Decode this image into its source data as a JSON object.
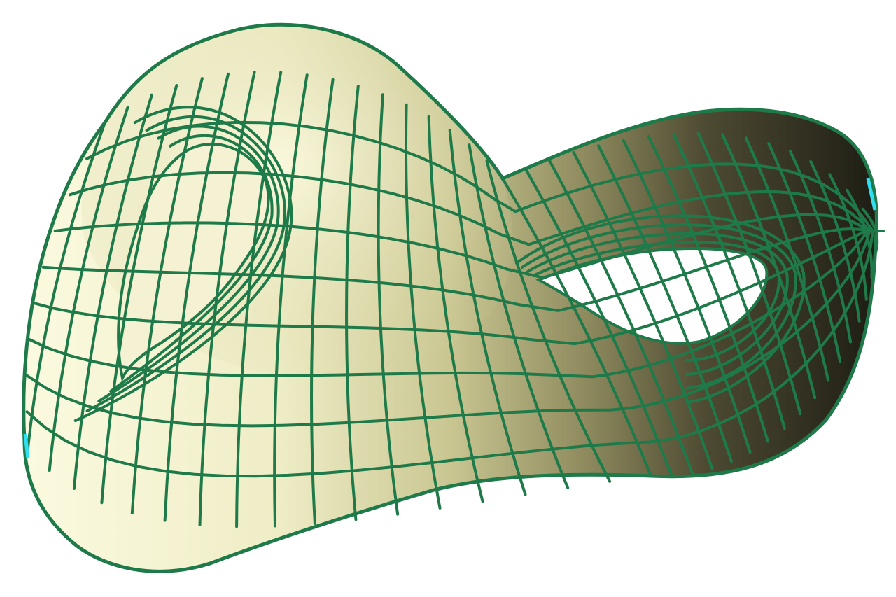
{
  "figure": {
    "subject": "klein-bottle-wireframe",
    "colors": {
      "background": "#ffffff",
      "surface_light": "#fbfae0",
      "surface_mid": "#dcd9a8",
      "surface_shade": "#8e8a5e",
      "surface_dark": "#2c2a1c",
      "mesh_line": "#1f7a4a",
      "edge_highlight": "#2fe0f0"
    }
  }
}
